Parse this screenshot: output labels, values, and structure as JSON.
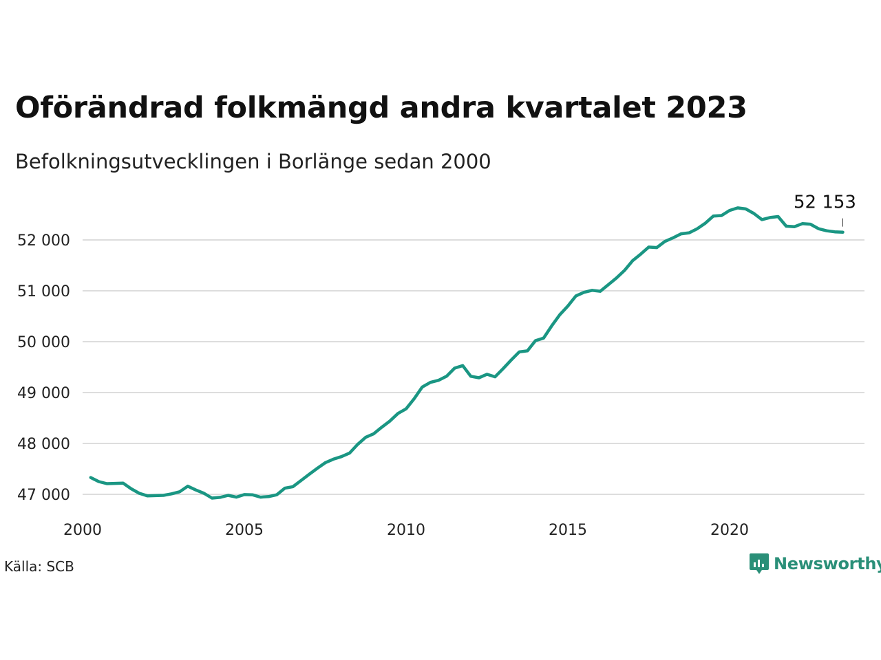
{
  "title": "Oförändrad folkmängd andra kvartalet 2023",
  "subtitle": "Befolkningsutvecklingen i Borlänge sedan 2000",
  "source": "Källa: SCB",
  "brand": {
    "name": "Newsworthy",
    "icon": "newsworthy-logo-icon",
    "color": "#2a8f78"
  },
  "chart_data": {
    "type": "line",
    "line_color": "#1a9683",
    "grid": true,
    "ylim": [
      46800,
      52950
    ],
    "xlim": [
      2000,
      2024.5
    ],
    "yticks": [
      47000,
      48000,
      49000,
      50000,
      51000,
      52000
    ],
    "ytick_labels": [
      "47 000",
      "48 000",
      "49 000",
      "50 000",
      "51 000",
      "52 000"
    ],
    "xticks": [
      2000,
      2005,
      2010,
      2015,
      2020
    ],
    "xtick_labels": [
      "2000",
      "2005",
      "2010",
      "2015",
      "2020"
    ],
    "last_value_label": "52 153",
    "series": [
      {
        "x": [
          2000.25,
          2000.5,
          2000.75,
          2001,
          2001.25,
          2001.5,
          2001.75,
          2002,
          2002.25,
          2002.5,
          2002.75,
          2003,
          2003.25,
          2003.5,
          2003.75,
          2004,
          2004.25,
          2004.5,
          2004.75,
          2005,
          2005.25,
          2005.5,
          2005.75,
          2006,
          2006.25,
          2006.5,
          2006.75,
          2007,
          2007.25,
          2007.5,
          2007.75,
          2008,
          2008.25,
          2008.5,
          2008.75,
          2009,
          2009.25,
          2009.5,
          2009.75,
          2010,
          2010.25,
          2010.5,
          2010.75,
          2011,
          2011.25,
          2011.5,
          2011.75,
          2012,
          2012.25,
          2012.5,
          2012.75,
          2013,
          2013.25,
          2013.5,
          2013.75,
          2014,
          2014.25,
          2014.5,
          2014.75,
          2015,
          2015.25,
          2015.5,
          2015.75,
          2016,
          2016.25,
          2016.5,
          2016.75,
          2017,
          2017.25,
          2017.5,
          2017.75,
          2018,
          2018.25,
          2018.5,
          2018.75,
          2019,
          2019.25,
          2019.5,
          2019.75,
          2020,
          2020.25,
          2020.5,
          2020.75,
          2021,
          2021.25,
          2021.5,
          2021.75,
          2022,
          2022.25,
          2022.5,
          2022.75,
          2023,
          2023.25,
          2023.5
        ],
        "values": [
          47330,
          47250,
          47210,
          47215,
          47220,
          47110,
          47020,
          46970,
          46975,
          46980,
          47010,
          47050,
          47160,
          47085,
          47020,
          46925,
          46940,
          46980,
          46945,
          46995,
          46990,
          46945,
          46955,
          46990,
          47120,
          47150,
          47270,
          47390,
          47510,
          47620,
          47690,
          47740,
          47810,
          47980,
          48120,
          48190,
          48320,
          48440,
          48590,
          48680,
          48880,
          49110,
          49200,
          49240,
          49320,
          49480,
          49530,
          49320,
          49290,
          49360,
          49310,
          49470,
          49640,
          49800,
          49820,
          50020,
          50070,
          50310,
          50530,
          50700,
          50900,
          50970,
          51010,
          50990,
          51120,
          51250,
          51400,
          51590,
          51720,
          51860,
          51850,
          51970,
          52040,
          52120,
          52140,
          52220,
          52330,
          52470,
          52480,
          52580,
          52630,
          52610,
          52520,
          52400,
          52440,
          52460,
          52270,
          52260,
          52320,
          52310,
          52220,
          52180,
          52160,
          52153
        ]
      }
    ]
  }
}
